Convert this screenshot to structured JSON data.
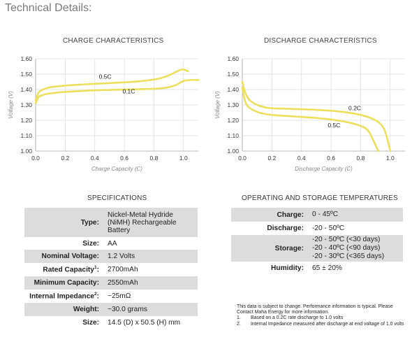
{
  "page": {
    "title": "Technical Details:"
  },
  "chart_data": [
    {
      "type": "line",
      "title": "CHARGE CHARACTERISTICS",
      "xlabel": "Charge Capacity (C)",
      "ylabel": "Voltage (V)",
      "xlim": [
        0,
        1.1
      ],
      "ylim": [
        1.0,
        1.6
      ],
      "xticks": [
        "0.0",
        "0.2",
        "0.4",
        "0.6",
        "0.8",
        "1.0"
      ],
      "yticks": [
        "1.00",
        "1.10",
        "1.20",
        "1.30",
        "1.40",
        "1.50",
        "1.60"
      ],
      "grid": true,
      "series": [
        {
          "name": "0.5C",
          "x": [
            0,
            0.02,
            0.05,
            0.1,
            0.2,
            0.3,
            0.4,
            0.5,
            0.6,
            0.7,
            0.8,
            0.85,
            0.9,
            0.95,
            0.98,
            1.0,
            1.03
          ],
          "y": [
            1.33,
            1.38,
            1.4,
            1.415,
            1.425,
            1.432,
            1.437,
            1.442,
            1.447,
            1.453,
            1.465,
            1.475,
            1.492,
            1.515,
            1.528,
            1.53,
            1.52
          ]
        },
        {
          "name": "0.1C",
          "x": [
            0,
            0.02,
            0.05,
            0.1,
            0.2,
            0.3,
            0.4,
            0.5,
            0.6,
            0.7,
            0.8,
            0.85,
            0.9,
            0.95,
            1.0,
            1.05,
            1.1
          ],
          "y": [
            1.31,
            1.35,
            1.365,
            1.375,
            1.385,
            1.39,
            1.395,
            1.397,
            1.4,
            1.402,
            1.405,
            1.408,
            1.415,
            1.43,
            1.455,
            1.462,
            1.462
          ]
        }
      ],
      "labels": [
        {
          "text": "0.5C",
          "x": 0.47,
          "y": 1.47
        },
        {
          "text": "0.1C",
          "x": 0.63,
          "y": 1.375
        }
      ]
    },
    {
      "type": "line",
      "title": "DISCHARGE CHARACTERISTICS",
      "xlabel": "Discharge Capacity (C)",
      "ylabel": "Voltage (V)",
      "xlim": [
        0,
        1.1
      ],
      "ylim": [
        1.0,
        1.6
      ],
      "xticks": [
        "0.0",
        "0.2",
        "0.4",
        "0.6",
        "0.8",
        "1.0"
      ],
      "yticks": [
        "1.00",
        "1.10",
        "1.20",
        "1.30",
        "1.40",
        "1.50",
        "1.60"
      ],
      "grid": true,
      "series": [
        {
          "name": "0.2C",
          "x": [
            0,
            0.02,
            0.05,
            0.1,
            0.15,
            0.2,
            0.3,
            0.4,
            0.5,
            0.6,
            0.7,
            0.8,
            0.88,
            0.93,
            0.96,
            0.98,
            1.0
          ],
          "y": [
            1.45,
            1.38,
            1.33,
            1.3,
            1.285,
            1.278,
            1.275,
            1.272,
            1.268,
            1.262,
            1.252,
            1.235,
            1.21,
            1.18,
            1.14,
            1.08,
            1.0
          ]
        },
        {
          "name": "0.5C",
          "x": [
            0,
            0.02,
            0.05,
            0.1,
            0.15,
            0.2,
            0.3,
            0.4,
            0.5,
            0.6,
            0.7,
            0.78,
            0.83,
            0.86,
            0.88,
            0.9,
            0.92
          ],
          "y": [
            1.41,
            1.32,
            1.28,
            1.255,
            1.242,
            1.235,
            1.228,
            1.222,
            1.215,
            1.205,
            1.19,
            1.17,
            1.15,
            1.12,
            1.08,
            1.04,
            1.0
          ]
        }
      ],
      "labels": [
        {
          "text": "0.2C",
          "x": 0.76,
          "y": 1.265
        },
        {
          "text": "0.5C",
          "x": 0.62,
          "y": 1.155
        }
      ]
    }
  ],
  "specifications": {
    "title": "SPECIFICATIONS",
    "rows": [
      {
        "key": "Type:",
        "value": "Nickel-Metal Hydride (NiMH) Rechargeable Battery",
        "sup": "",
        "shade": true
      },
      {
        "key": "Size:",
        "value": "AA",
        "sup": "",
        "shade": false
      },
      {
        "key": "Nominal Voltage:",
        "value": "1.2 Volts",
        "sup": "",
        "shade": true
      },
      {
        "key": "Rated Capacity",
        "value": "2700mAh",
        "sup": "1",
        "shade": false
      },
      {
        "key": "Minimum Capacity:",
        "value": "2550mAh",
        "sup": "",
        "shade": true
      },
      {
        "key": "Internal Impedance",
        "value": "~25mΩ",
        "sup": "2",
        "shade": false
      },
      {
        "key": "Weight:",
        "value": "~30.0 grams",
        "sup": "",
        "shade": true
      },
      {
        "key": "Size:",
        "value": "14.5 (D) x 50.5 (H) mm",
        "sup": "",
        "shade": false
      }
    ]
  },
  "temperatures": {
    "title": "OPERATING AND STORAGE TEMPERATURES",
    "rows": [
      {
        "key": "Charge:",
        "value": "0 - 45ºC",
        "shade": true
      },
      {
        "key": "Discharge:",
        "value": "-20 - 50ºC",
        "shade": false
      },
      {
        "key": "Storage:",
        "value": "-20 - 50ºC (<30 days)\n-20 - 40ºC (<90 days)\n-20 - 30ºC (<365 days)",
        "shade": true
      },
      {
        "key": "Humidity:",
        "value": "65 ± 20%",
        "shade": false
      }
    ]
  },
  "notes": {
    "intro": "This data is subject to change.  Performance information is typical.  Please Contact Maha Energy for more information.",
    "items": [
      {
        "num": "1.",
        "text": "Based on a 0.2C rate discharge to 1.0 volts"
      },
      {
        "num": "2.",
        "text": "Internal Impedance measured after discharge at end voltage of 1.0 volts"
      }
    ]
  }
}
